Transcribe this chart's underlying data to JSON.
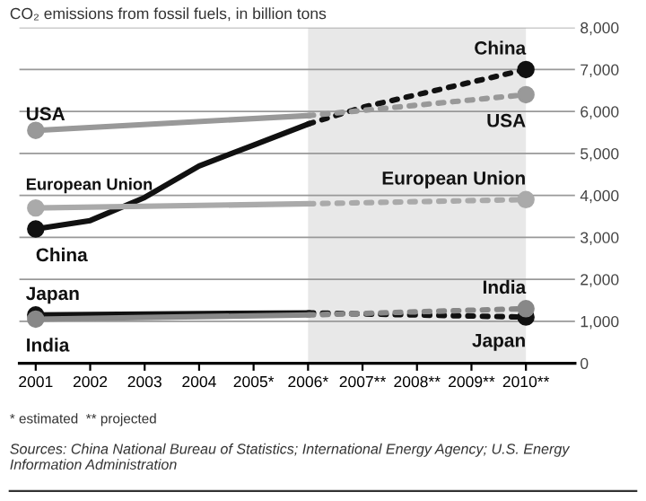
{
  "chart_data": {
    "type": "line",
    "title": "CO₂ emissions from fossil fuels, in billion tons",
    "annotations": [
      "* estimated  ** projected",
      "Sources: China National Bureau of Statistics; International Energy Agency; U.S. Energy Information Administration"
    ],
    "series": [
      {
        "type": "scatter",
        "color": "#111111",
        "marker": "circle",
        "x": [
          2001
        ],
        "values": [
          3200
        ]
      },
      {
        "type": "scatter",
        "color": "#111111",
        "marker": "circle",
        "x": [
          2010
        ],
        "values": [
          7000
        ]
      },
      {
        "name": "China",
        "color": "#111111",
        "line_style": "solid",
        "x": [
          2001,
          2002,
          2003,
          2004,
          2005,
          2006
        ],
        "values": [
          3200,
          3400,
          3950,
          4700,
          5200,
          5700
        ]
      },
      {
        "name": "China",
        "color": "#111111",
        "line_style": "dotted",
        "x": [
          2006,
          2007,
          2008,
          2009,
          2010
        ],
        "values": [
          5700,
          6100,
          6400,
          6700,
          7000
        ]
      },
      {
        "name": "USA",
        "color": "#999999",
        "line_style": "solid",
        "marker": "circle",
        "x": [
          2001,
          2006
        ],
        "values": [
          5550,
          5900
        ]
      },
      {
        "name": "USA",
        "color": "#999999",
        "line_style": "dotted",
        "marker": "circle",
        "x": [
          2006,
          2010
        ],
        "values": [
          5900,
          6400
        ]
      },
      {
        "name": "European Union",
        "color": "#aaaaaa",
        "line_style": "solid",
        "marker": "circle",
        "x": [
          2001,
          2006
        ],
        "values": [
          3700,
          3800
        ]
      },
      {
        "name": "European Union",
        "color": "#aaaaaa",
        "line_style": "dotted",
        "marker": "circle",
        "x": [
          2006,
          2010
        ],
        "values": [
          3800,
          3900
        ]
      },
      {
        "name": "Japan",
        "color": "#111111",
        "line_style": "solid",
        "marker": "circle",
        "x": [
          2001,
          2006
        ],
        "values": [
          1150,
          1200
        ]
      },
      {
        "name": "Japan",
        "color": "#111111",
        "line_style": "dotted",
        "marker": "circle",
        "x": [
          2006,
          2010
        ],
        "values": [
          1200,
          1100
        ]
      },
      {
        "name": "India",
        "color": "#888888",
        "line_style": "solid",
        "marker": "circle",
        "x": [
          2001,
          2006
        ],
        "values": [
          1050,
          1150
        ]
      },
      {
        "name": "India",
        "color": "#888888",
        "line_style": "dotted",
        "marker": "circle",
        "x": [
          2006,
          2010
        ],
        "values": [
          1150,
          1300
        ]
      }
    ],
    "xlim": [
      2000.7,
      2010.9
    ],
    "xticks": [
      2001,
      2002,
      2003,
      2004,
      {
        "value": 2005,
        "label": "2005*"
      },
      {
        "value": 2006,
        "label": "2006*"
      },
      {
        "value": 2007,
        "label": "2007**"
      },
      {
        "value": 2008,
        "label": "2008**"
      },
      {
        "value": 2009,
        "label": "2009**"
      },
      {
        "value": 2010,
        "label": "2010**"
      }
    ],
    "ylim": [
      0,
      8000
    ],
    "yticks": [
      {
        "value": 0,
        "label": "0"
      },
      {
        "value": 1000,
        "label": "1,000"
      },
      {
        "value": 2000,
        "label": "2,000"
      },
      {
        "value": 3000,
        "label": "3,000"
      },
      {
        "value": 4000,
        "label": "4,000"
      },
      {
        "value": 5000,
        "label": "5,000"
      },
      {
        "value": 6000,
        "label": "6,000"
      },
      {
        "value": 7000,
        "label": "7,000"
      },
      {
        "value": 8000,
        "label": "8,000"
      }
    ],
    "bands": [
      {
        "axis": "x",
        "from": 2006,
        "to": 2010,
        "color": "#e8e8e8"
      }
    ],
    "grid": "y"
  }
}
